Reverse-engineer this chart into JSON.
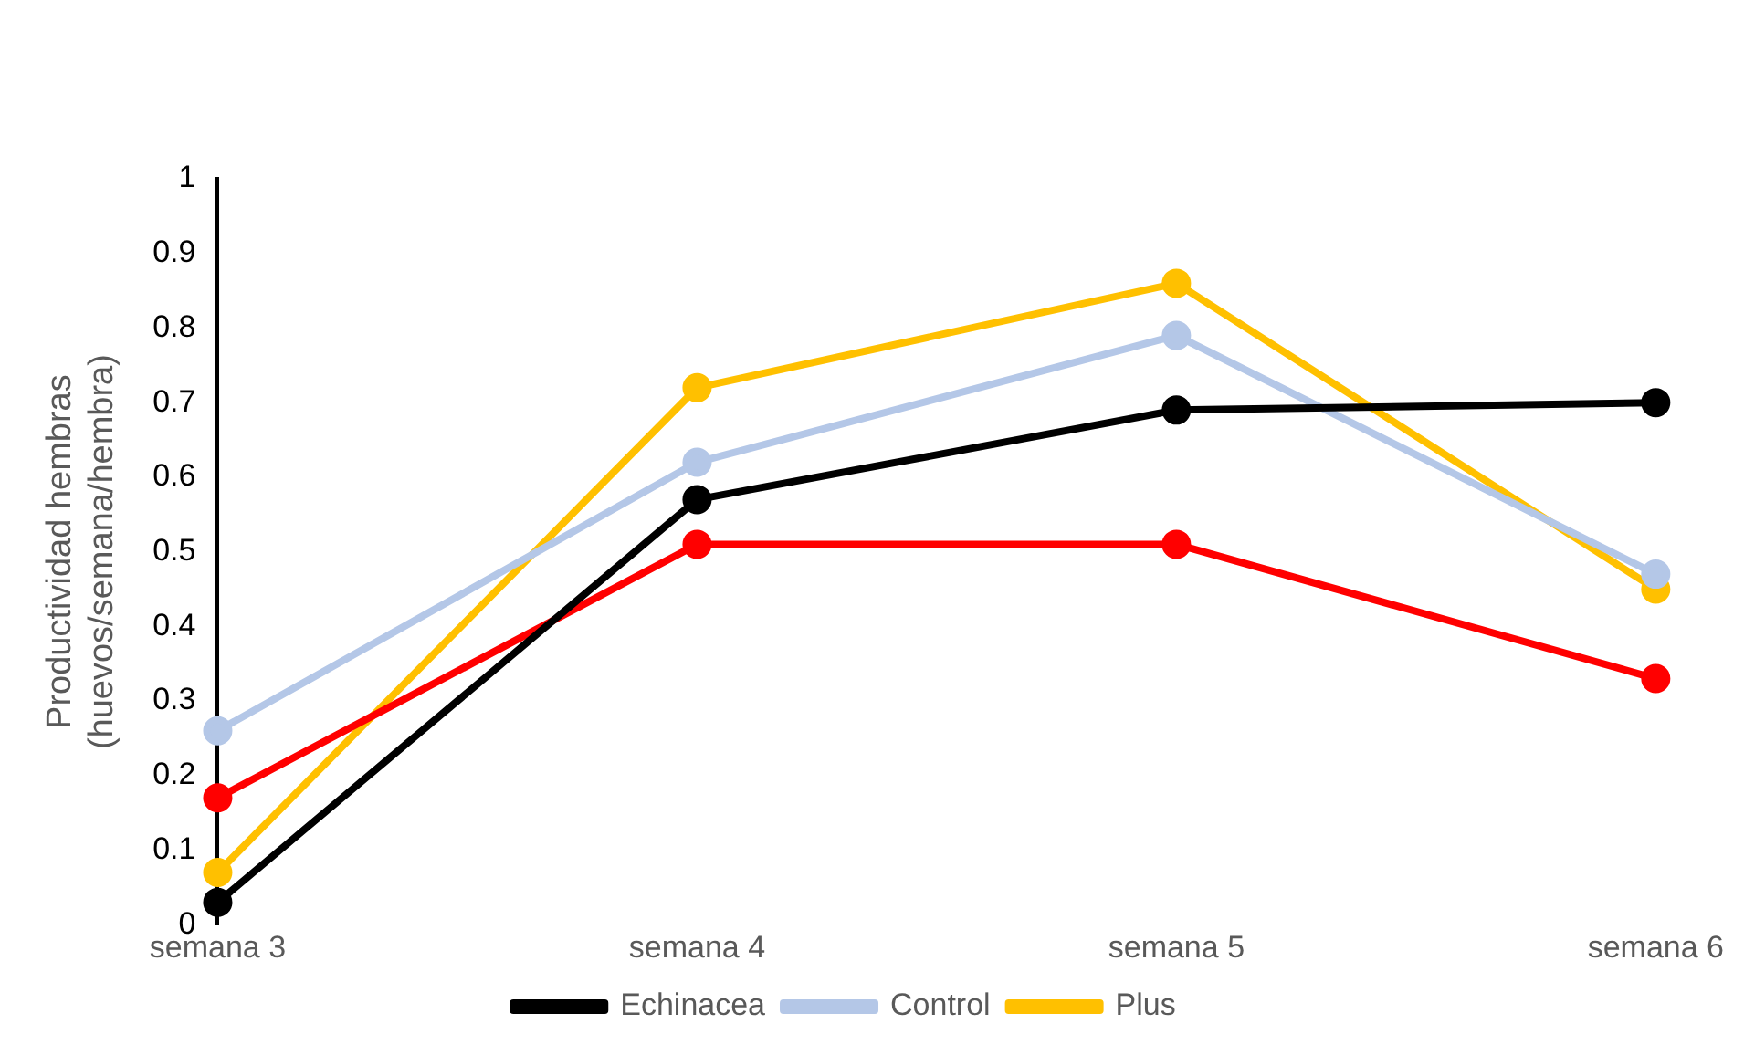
{
  "chart_data": {
    "type": "line",
    "ylabel": "Productividad hembras\n(huevos/semana/hembra)",
    "categories": [
      "semana 3",
      "semana 4",
      "semana 5",
      "semana 6"
    ],
    "series": [
      {
        "name": "Echinacea",
        "color": "#000000",
        "values": [
          0.03,
          0.57,
          0.69,
          0.7
        ]
      },
      {
        "name": "Control",
        "color": "#b4c7e7",
        "values": [
          0.26,
          0.62,
          0.79,
          0.47
        ]
      },
      {
        "color": "#ff0000",
        "values": [
          0.17,
          0.51,
          0.51,
          0.33
        ]
      },
      {
        "name": "Plus",
        "color": "#ffc000",
        "values": [
          0.07,
          0.72,
          0.86,
          0.45
        ]
      }
    ],
    "ylim": [
      0,
      1
    ],
    "yticks": [
      0,
      0.1,
      0.2,
      0.3,
      0.4,
      0.5,
      0.6,
      0.7,
      0.8,
      0.9,
      1
    ],
    "grid": false,
    "legend": "bottom",
    "marker": "circle",
    "line_style": "solid"
  }
}
